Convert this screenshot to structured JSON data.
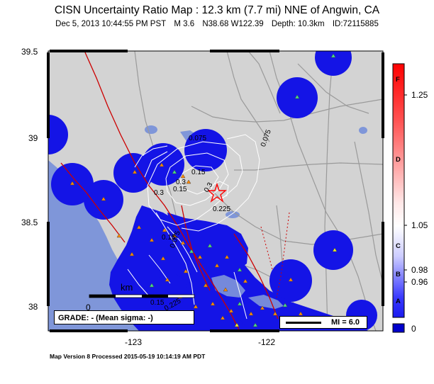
{
  "header": {
    "title": "CISN Uncertainty Ratio Map : 12.3 km (7.7 mi) NNE of Angwin, CA",
    "date": "Dec  5, 2013 10:44:55 PM PST",
    "magnitude": "M 3.6",
    "location": "N38.68 W122.39",
    "depth": "Depth: 10.3km",
    "event_id": "ID:72115885"
  },
  "axes": {
    "lat_labels": [
      "39.5",
      "39",
      "38.5",
      "38"
    ],
    "lon_labels": [
      "-123",
      "-122"
    ]
  },
  "contours": {
    "labels": [
      "0.075",
      "0.075",
      "0.15",
      "0.225",
      "0.3",
      "0.3",
      "0.15",
      "0.075",
      "0.225",
      "0.3",
      "0.15",
      "0.15"
    ]
  },
  "scale_bar": {
    "unit": "km",
    "start": "0"
  },
  "grade": {
    "text": "GRADE: - (Mean sigma: -)"
  },
  "mi_legend": {
    "text": "MI = 6.0"
  },
  "colorbar": {
    "tick_labels": [
      "1.25",
      "1.05",
      "0.98",
      "0.96",
      "0"
    ],
    "grade_letters": [
      "F",
      "D",
      "C",
      "B",
      "A"
    ],
    "colors": {
      "top": "#ff0000",
      "mid": "#ffffff",
      "low": "#4040ff",
      "bottom": "#0000cc"
    }
  },
  "map_colors": {
    "land": "#d3d3d3",
    "water": "#7f96d9",
    "uncertainty": "#1414e6",
    "roads": "#9a9a9a",
    "faults": "#cc0000",
    "epicenter": "#ff0000"
  },
  "footer": {
    "text": "Map Version 8 Processed 2015-05-19 10:14:19 AM PDT"
  }
}
